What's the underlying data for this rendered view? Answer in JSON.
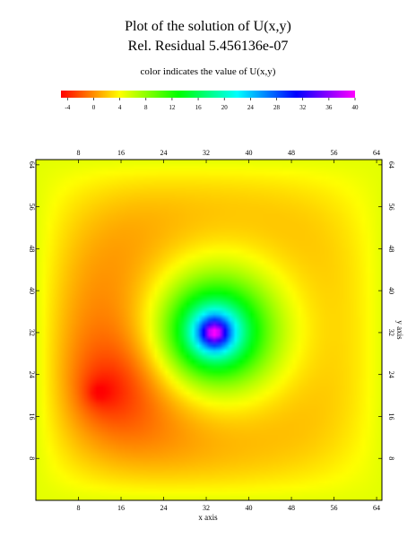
{
  "chart_data": {
    "type": "heatmap",
    "title": "Plot of the solution of U(x,y)",
    "subtitle": "Rel. Residual 5.456136e-07",
    "colorbar_label": "color indicates the value of U(x,y)",
    "colorbar_ticks": [
      -4,
      0,
      4,
      8,
      12,
      16,
      20,
      24,
      28,
      32,
      36,
      40
    ],
    "colorbar_range": [
      -5,
      40
    ],
    "colorscale": [
      "#ff0000",
      "#ffff00",
      "#00ff00",
      "#00ffff",
      "#0000ff",
      "#ff00ff"
    ],
    "xlabel": "x axis",
    "ylabel": "y axis",
    "xlim": [
      0,
      65
    ],
    "ylim": [
      0,
      65
    ],
    "x_ticks": [
      8,
      16,
      24,
      32,
      40,
      48,
      56,
      64
    ],
    "y_ticks": [
      8,
      16,
      24,
      32,
      40,
      48,
      56,
      64
    ],
    "grid_size": 65,
    "boundary_value": 5,
    "features": [
      {
        "kind": "peak",
        "x": 33.5,
        "y": 32,
        "value": 40
      },
      {
        "kind": "trough",
        "x": 11.5,
        "y": 20.5,
        "value": -5
      }
    ]
  }
}
